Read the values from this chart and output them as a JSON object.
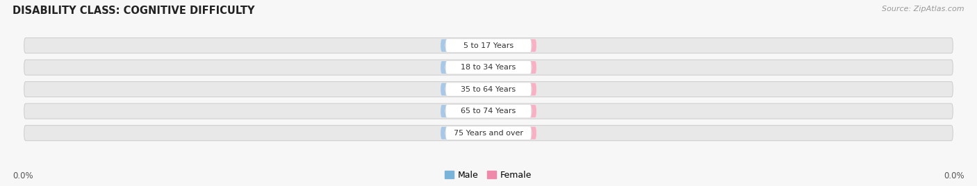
{
  "title": "DISABILITY CLASS: COGNITIVE DIFFICULTY",
  "source": "Source: ZipAtlas.com",
  "categories": [
    "5 to 17 Years",
    "18 to 34 Years",
    "35 to 64 Years",
    "65 to 74 Years",
    "75 Years and over"
  ],
  "male_values": [
    0.0,
    0.0,
    0.0,
    0.0,
    0.0
  ],
  "female_values": [
    0.0,
    0.0,
    0.0,
    0.0,
    0.0
  ],
  "male_bar_color": "#a8c8e8",
  "female_bar_color": "#f9b0c5",
  "bar_bg_color": "#e8e8e8",
  "bar_outline_color": "#cccccc",
  "male_legend_color": "#7ab3d8",
  "female_legend_color": "#f08aaa",
  "title_color": "#222222",
  "source_color": "#999999",
  "axis_label_color": "#555555",
  "fig_bg_color": "#f7f7f7",
  "center_pill_color": "#ffffff",
  "center_pill_outline": "#dddddd"
}
